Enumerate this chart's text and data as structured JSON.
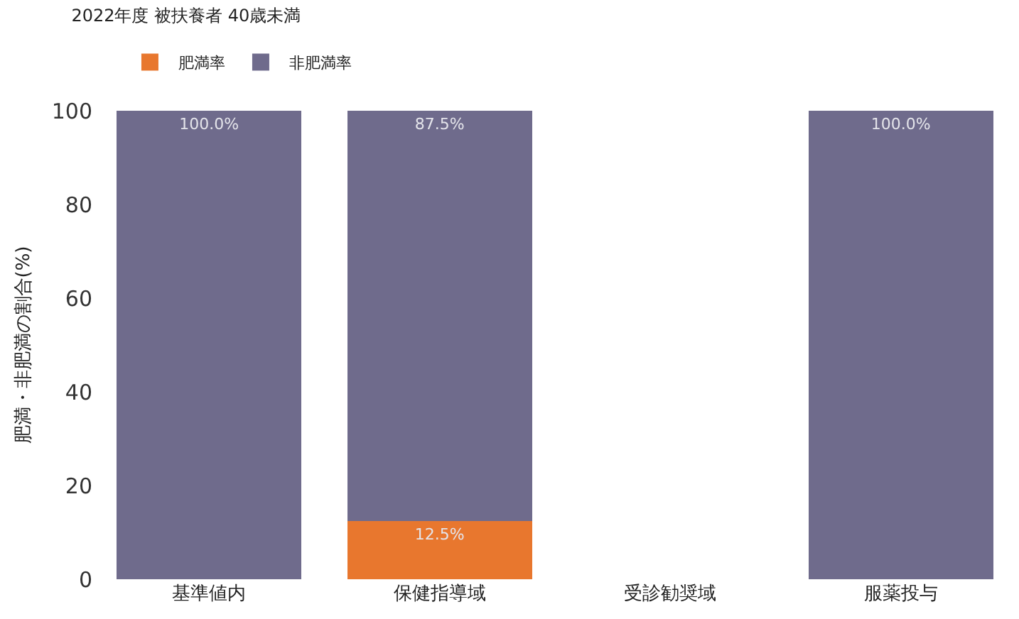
{
  "chart_data": {
    "type": "bar",
    "title": "2022年度 被扶養者 40歳未満",
    "ylabel": "肥満・非肥満の割合(%)",
    "categories": [
      "基準値内",
      "保健指導域",
      "受診勧奨域",
      "服薬投与"
    ],
    "series": [
      {
        "name": "肥満率",
        "color": "#e8772e",
        "values": [
          0,
          12.5,
          null,
          0
        ],
        "value_labels": [
          null,
          "12.5%",
          null,
          null
        ]
      },
      {
        "name": "非肥満率",
        "color": "#6f6b8c",
        "values": [
          100,
          87.5,
          null,
          100
        ],
        "value_labels": [
          "100.0%",
          "87.5%",
          null,
          "100.0%"
        ]
      }
    ],
    "stacked": true,
    "ylim": [
      0,
      100
    ],
    "yticks": [
      0,
      20,
      40,
      60,
      80,
      100
    ],
    "legend": "top left"
  }
}
